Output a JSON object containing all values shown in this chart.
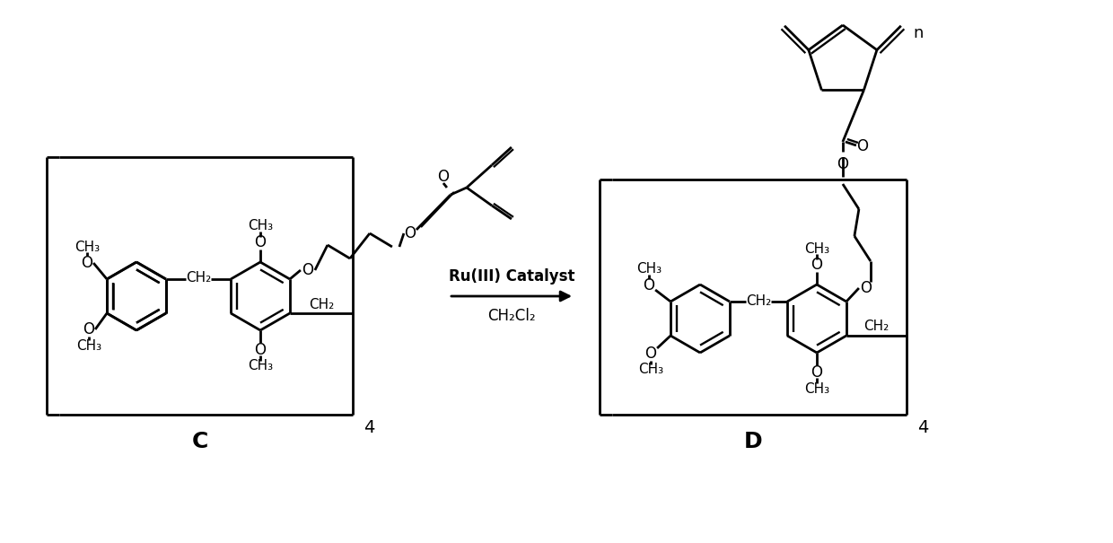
{
  "bg_color": "#ffffff",
  "lc": "#000000",
  "lw": 2.0,
  "reaction_label1": "Ru(III) Catalyst",
  "reaction_label2": "CH₂Cl₂",
  "label_C": "C",
  "label_D": "D",
  "sub4": "4",
  "subn": "n"
}
